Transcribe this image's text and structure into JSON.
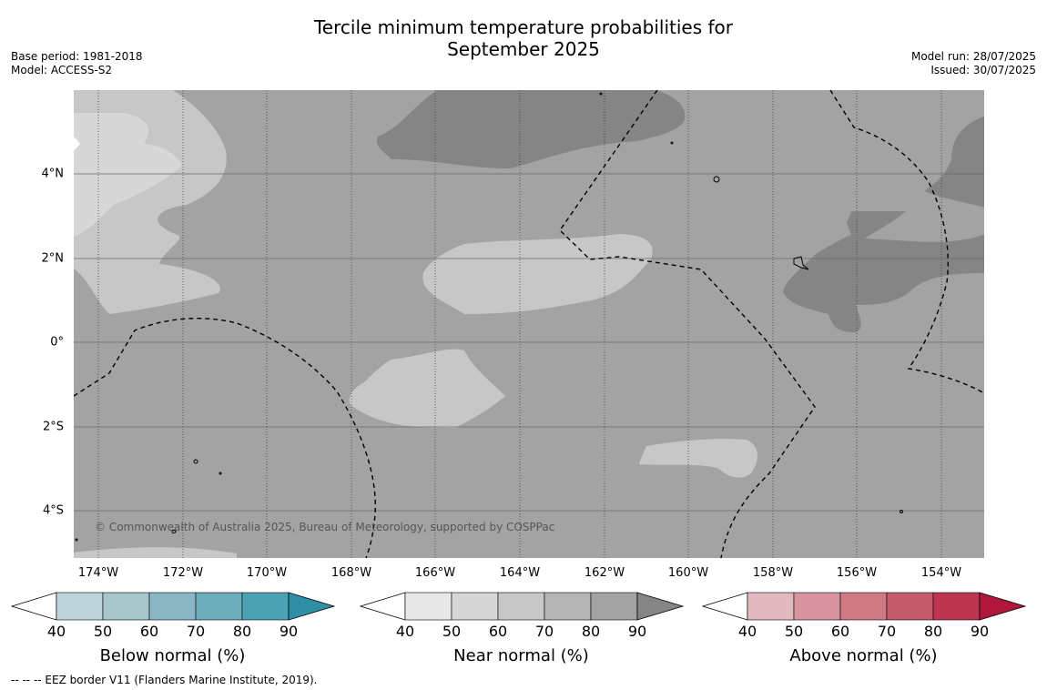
{
  "title_line1": "Tercile minimum temperature probabilities for",
  "title_line2": "September 2025",
  "meta_left": [
    "Base period: 1981-2018",
    "Model: ACCESS-S2"
  ],
  "meta_right": [
    "Model run: 28/07/2025",
    "Issued: 30/07/2025"
  ],
  "credit": "© Commonwealth of Australia 2025, Bureau of Meteorology, supported by COSPPac",
  "footer": "-- -- -- EEZ border V11 (Flanders Marine Institute, 2019).",
  "x_ticks": [
    "174°W",
    "172°W",
    "170°W",
    "168°W",
    "166°W",
    "164°W",
    "162°W",
    "160°W",
    "158°W",
    "156°W",
    "154°W"
  ],
  "y_ticks": [
    "4°N",
    "2°N",
    "0°",
    "2°S",
    "4°S"
  ],
  "colorbars": [
    {
      "title": "Below normal (%)",
      "labels": [
        "40",
        "50",
        "60",
        "70",
        "80",
        "90"
      ],
      "colors": [
        "#bcd4da",
        "#a6c6cc",
        "#89b7c3",
        "#6eadbb",
        "#4aa2b2",
        "#2f8fa4"
      ]
    },
    {
      "title": "Near normal (%)",
      "labels": [
        "40",
        "50",
        "60",
        "70",
        "80",
        "90"
      ],
      "colors": [
        "#e8e8e8",
        "#d7d7d7",
        "#c7c7c7",
        "#b4b4b4",
        "#a3a3a3",
        "#858585"
      ]
    },
    {
      "title": "Above normal (%)",
      "labels": [
        "40",
        "50",
        "60",
        "70",
        "80",
        "90"
      ],
      "colors": [
        "#e2b9bf",
        "#d8949e",
        "#cf7984",
        "#c65c6b",
        "#bd3550",
        "#b0183b"
      ]
    }
  ],
  "colors": {
    "base": "#a3a3a3",
    "dark": "#858585",
    "light": "#c7c7c7",
    "lighter": "#d7d7d7",
    "white": "#ffffff"
  }
}
